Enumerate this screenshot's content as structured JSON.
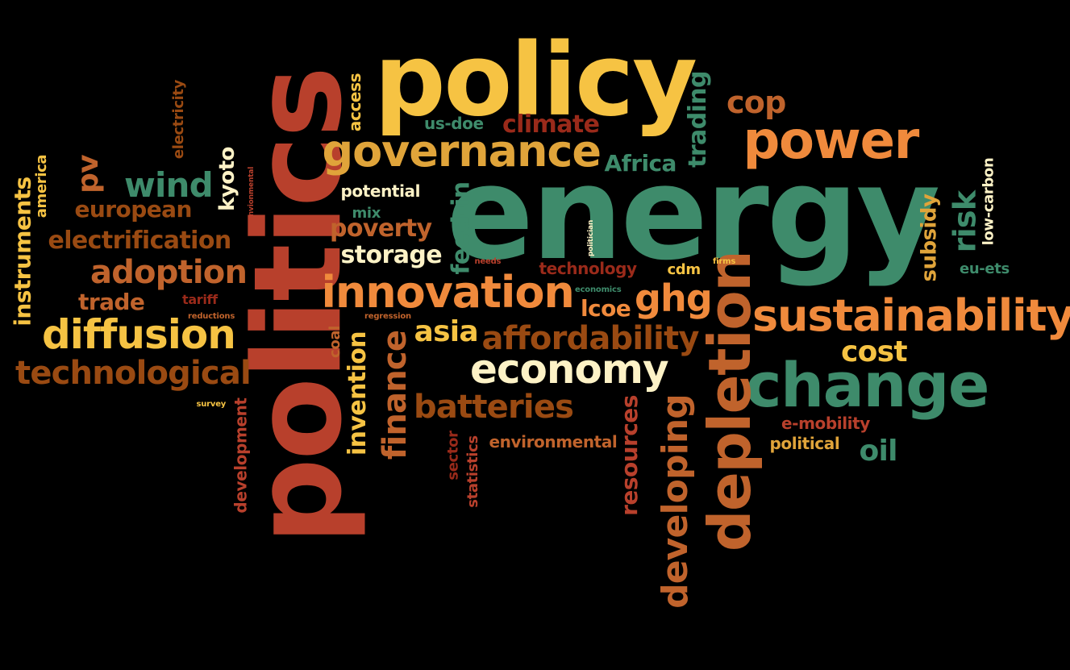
{
  "palette": {
    "background": "#000000",
    "yellow": "#F6C343",
    "orange": "#F08A3C",
    "teal": "#3E8B6B",
    "red": "#B8402C",
    "brown": "#9A4A12",
    "cream": "#FDF2C6",
    "amber": "#E0A43A"
  },
  "words": [
    {
      "text": "energy",
      "color": "#3E8B6B"
    },
    {
      "text": "policy",
      "color": "#F6C343"
    },
    {
      "text": "politics",
      "color": "#B8402C"
    },
    {
      "text": "power",
      "color": "#F08A3C"
    },
    {
      "text": "change",
      "color": "#3E8B6B"
    },
    {
      "text": "governance",
      "color": "#E0A43A"
    },
    {
      "text": "innovation",
      "color": "#F08A3C"
    },
    {
      "text": "sustainability",
      "color": "#F08A3C"
    },
    {
      "text": "depletion",
      "color": "#C0632C"
    },
    {
      "text": "economy",
      "color": "#FDF2C6"
    },
    {
      "text": "diffusion",
      "color": "#F6C343"
    },
    {
      "text": "technological",
      "color": "#9A4A12"
    },
    {
      "text": "affordability",
      "color": "#9A4A12"
    },
    {
      "text": "adoption",
      "color": "#C0632C"
    },
    {
      "text": "batteries",
      "color": "#9A4A12"
    },
    {
      "text": "developing",
      "color": "#C0632C"
    },
    {
      "text": "electrification",
      "color": "#9A4A12"
    },
    {
      "text": "wind",
      "color": "#3E8B6B"
    },
    {
      "text": "cop",
      "color": "#C0632C"
    },
    {
      "text": "finance",
      "color": "#C0632C"
    },
    {
      "text": "cost",
      "color": "#F6C343"
    },
    {
      "text": "oil",
      "color": "#3E8B6B"
    },
    {
      "text": "ghg",
      "color": "#F08A3C"
    },
    {
      "text": "asia",
      "color": "#F6C343"
    },
    {
      "text": "storage",
      "color": "#FDF2C6"
    },
    {
      "text": "poverty",
      "color": "#C0632C"
    },
    {
      "text": "european",
      "color": "#9A4A12"
    },
    {
      "text": "trade",
      "color": "#C0632C"
    },
    {
      "text": "climate",
      "color": "#9A2A1A"
    },
    {
      "text": "Africa",
      "color": "#3E8B6B"
    },
    {
      "text": "instruments",
      "color": "#F6C343"
    },
    {
      "text": "invention",
      "color": "#F6C343"
    },
    {
      "text": "resources",
      "color": "#B8402C"
    },
    {
      "text": "trading",
      "color": "#3E8B6B"
    },
    {
      "text": "risk",
      "color": "#3E8B6B"
    },
    {
      "text": "subsidy",
      "color": "#E0A43A"
    },
    {
      "text": "kyoto",
      "color": "#FDF2C6"
    },
    {
      "text": "pv",
      "color": "#C0632C"
    },
    {
      "text": "feed-in",
      "color": "#3E8B6B"
    },
    {
      "text": "environmental",
      "color": "#C0632C"
    },
    {
      "text": "lcoe",
      "color": "#F08A3C"
    },
    {
      "text": "development",
      "color": "#B8402C"
    },
    {
      "text": "technology",
      "color": "#9A2A1A"
    },
    {
      "text": "e-mobility",
      "color": "#B8402C"
    },
    {
      "text": "political",
      "color": "#E0A43A"
    },
    {
      "text": "potential",
      "color": "#FDF2C6"
    },
    {
      "text": "us-doe",
      "color": "#3E8B6B"
    },
    {
      "text": "access",
      "color": "#F6C343"
    },
    {
      "text": "electricity",
      "color": "#9A4A12"
    },
    {
      "text": "america",
      "color": "#F6C343"
    },
    {
      "text": "low-carbon",
      "color": "#FDF2C6"
    },
    {
      "text": "eu-ets",
      "color": "#3E8B6B"
    },
    {
      "text": "cdm",
      "color": "#F6C343"
    },
    {
      "text": "tariff",
      "color": "#9A2A1A"
    },
    {
      "text": "mix",
      "color": "#3E8B6B"
    },
    {
      "text": "sector",
      "color": "#9A2A1A"
    },
    {
      "text": "statistics",
      "color": "#B8402C"
    },
    {
      "text": "coal",
      "color": "#C0632C"
    },
    {
      "text": "regression",
      "color": "#C0632C"
    },
    {
      "text": "reductions",
      "color": "#C0632C"
    },
    {
      "text": "economics",
      "color": "#3E8B6B"
    },
    {
      "text": "needs",
      "color": "#B8402C"
    },
    {
      "text": "firms",
      "color": "#F6C343"
    },
    {
      "text": "survey",
      "color": "#F6C343"
    },
    {
      "text": "politician",
      "color": "#FDF2C6"
    },
    {
      "text": "envionmental",
      "color": "#B8402C"
    }
  ]
}
